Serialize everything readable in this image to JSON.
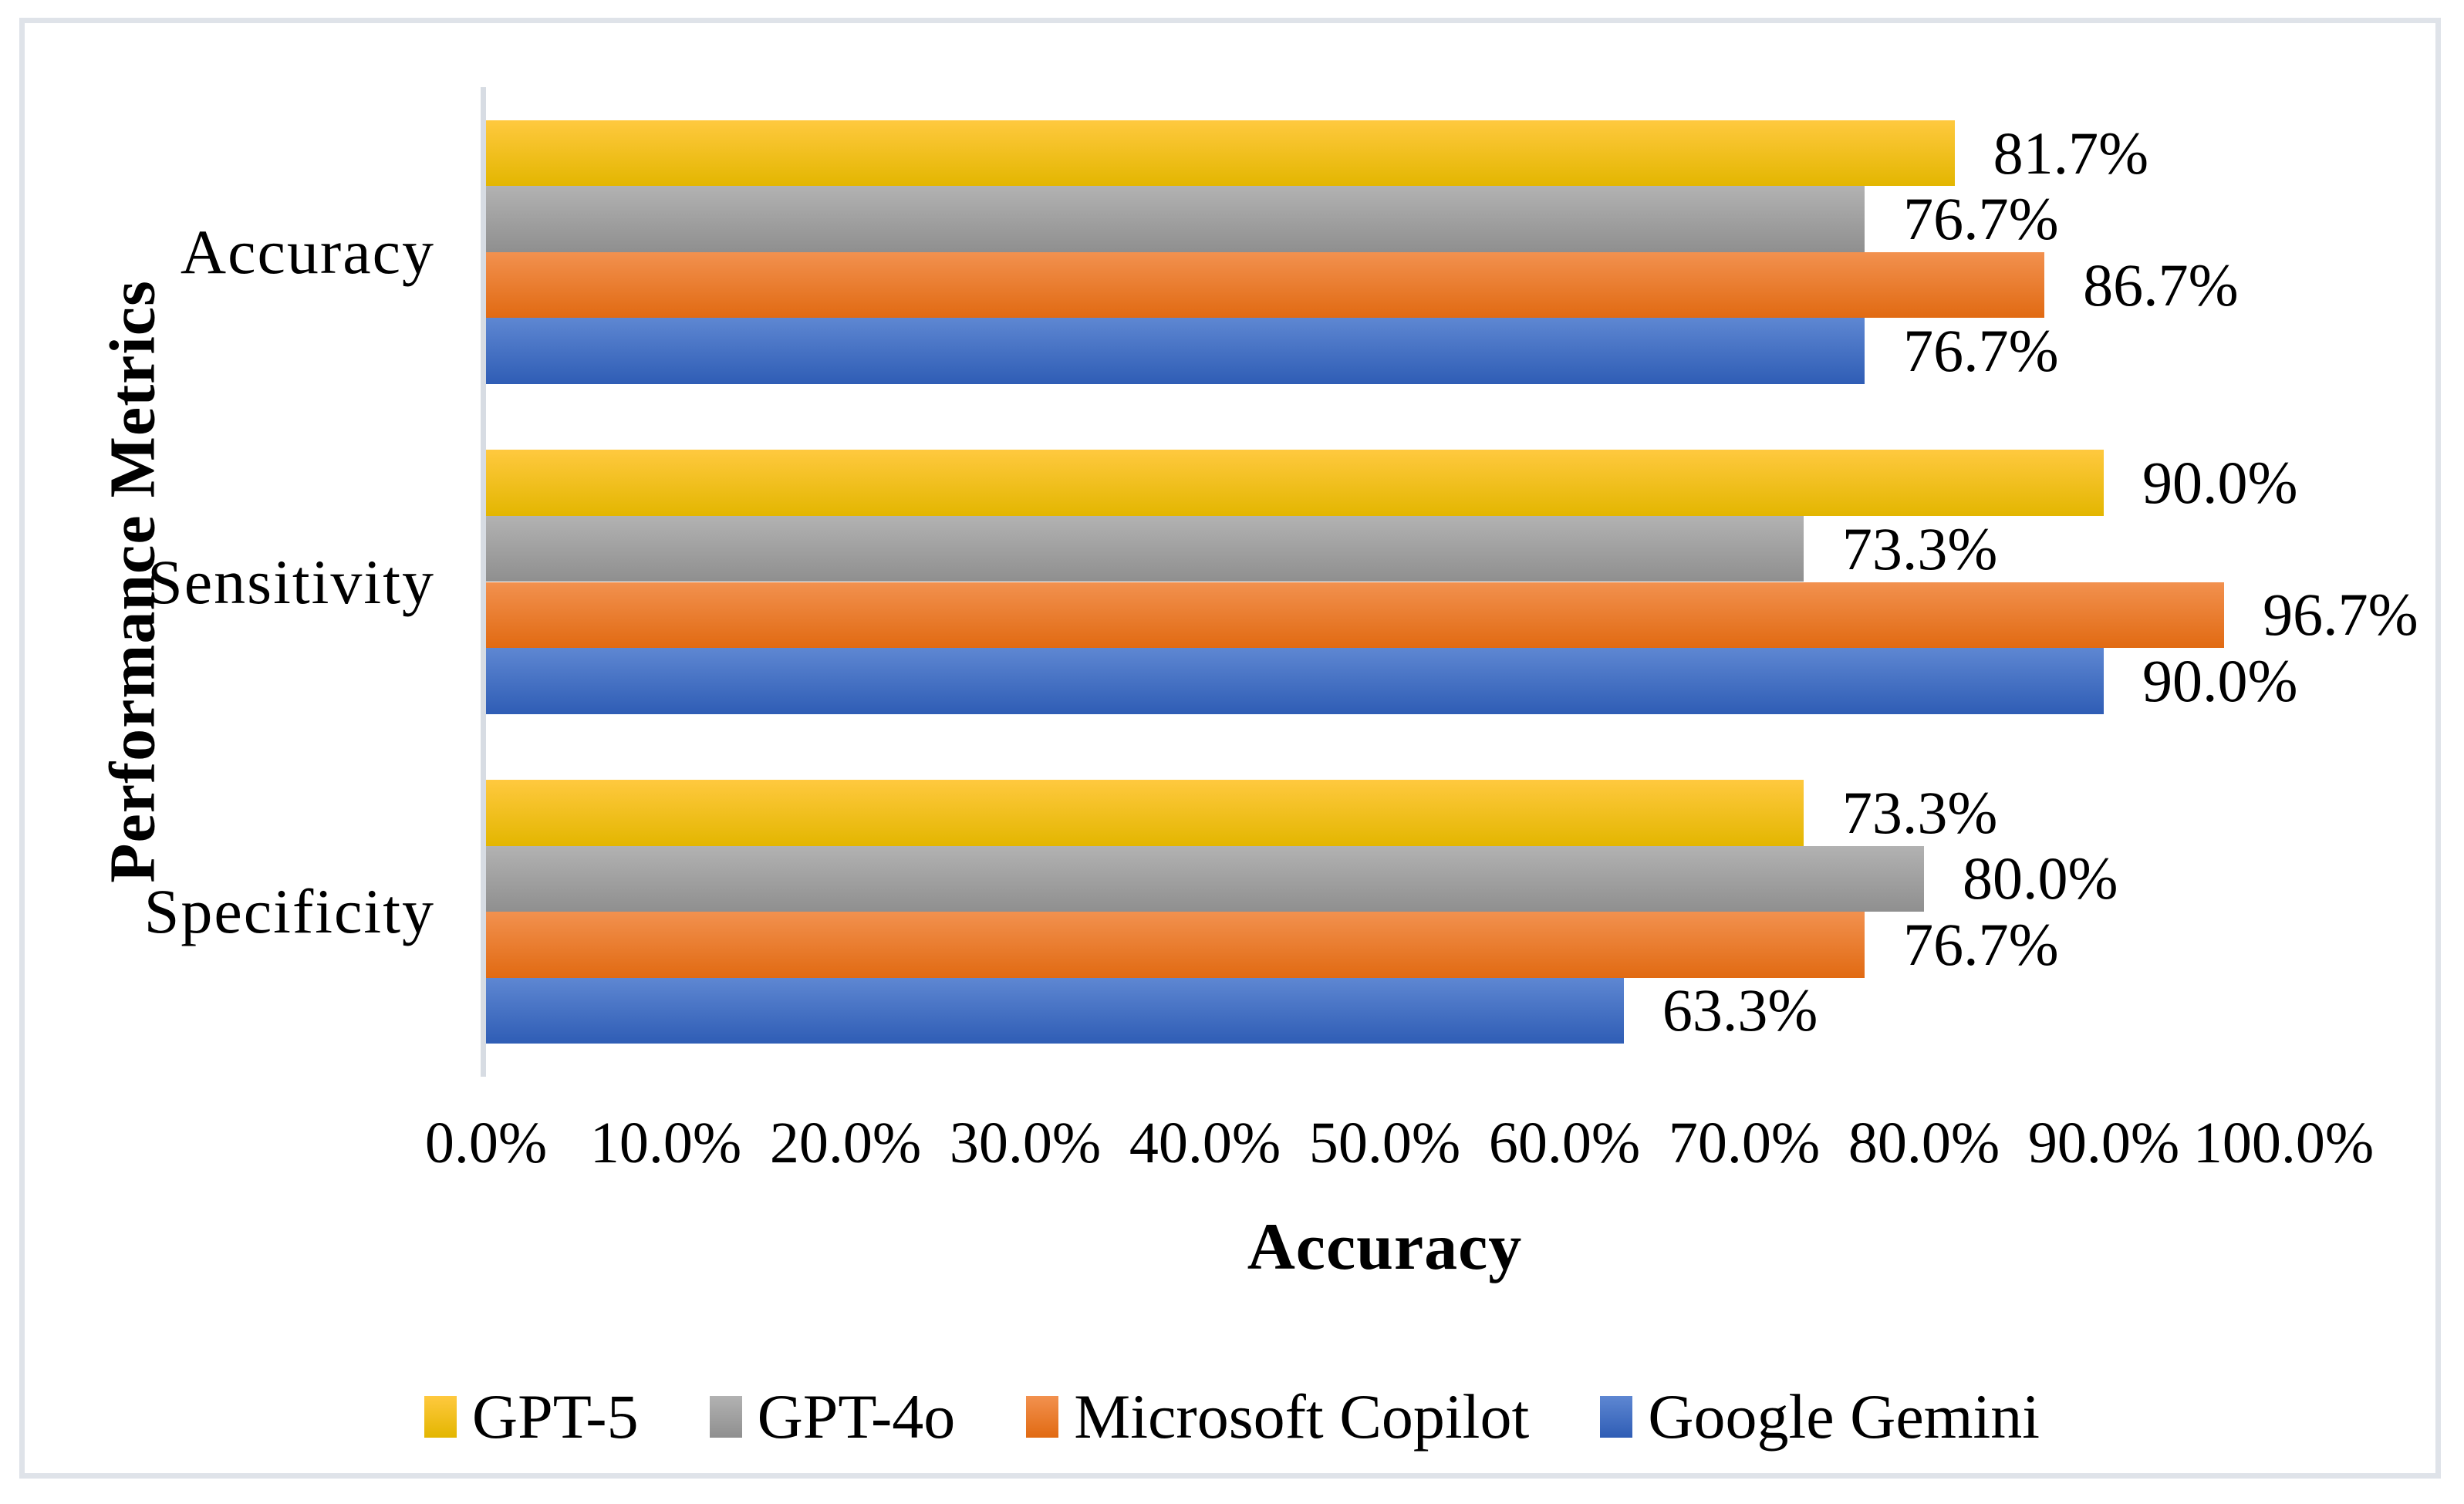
{
  "chart_data": {
    "type": "bar",
    "orientation": "horizontal",
    "title": "",
    "xlabel": "Accuracy",
    "ylabel": "Performance Metrics",
    "categories": [
      "Accuracy",
      "Sensitivity",
      "Specificity"
    ],
    "series": [
      {
        "name": "GPT-5",
        "color": "#FFC000",
        "gradient_top": "#FFC93F",
        "gradient_bottom": "#E3B600",
        "values": [
          81.7,
          90.0,
          73.3
        ],
        "labels": [
          "81.7%",
          "90.0%",
          "73.3%"
        ]
      },
      {
        "name": "GPT-4o",
        "color": "#A5A5A5",
        "gradient_top": "#B2B2B2",
        "gradient_bottom": "#8F8F8F",
        "values": [
          76.7,
          73.3,
          80.0
        ],
        "labels": [
          "76.7%",
          "73.3%",
          "80.0%"
        ]
      },
      {
        "name": "Microsoft Copilot",
        "color": "#ED7D31",
        "gradient_top": "#F2914F",
        "gradient_bottom": "#E16A12",
        "values": [
          86.7,
          96.7,
          76.7
        ],
        "labels": [
          "86.7%",
          "96.7%",
          "76.7%"
        ]
      },
      {
        "name": "Google Gemini",
        "color": "#4472C4",
        "gradient_top": "#5E87D2",
        "gradient_bottom": "#2F5DB5",
        "values": [
          76.7,
          90.0,
          63.3
        ],
        "labels": [
          "76.7%",
          "90.0%",
          "63.3%"
        ]
      }
    ],
    "xlim": [
      0,
      100
    ],
    "x_ticks": [
      "0.0%",
      "10.0%",
      "20.0%",
      "30.0%",
      "40.0%",
      "50.0%",
      "60.0%",
      "70.0%",
      "80.0%",
      "90.0%",
      "100.0%"
    ],
    "legend_position": "bottom",
    "grid": false,
    "axis_line_color": "#D7DCE3",
    "frame_color": "#DFE3E9"
  }
}
